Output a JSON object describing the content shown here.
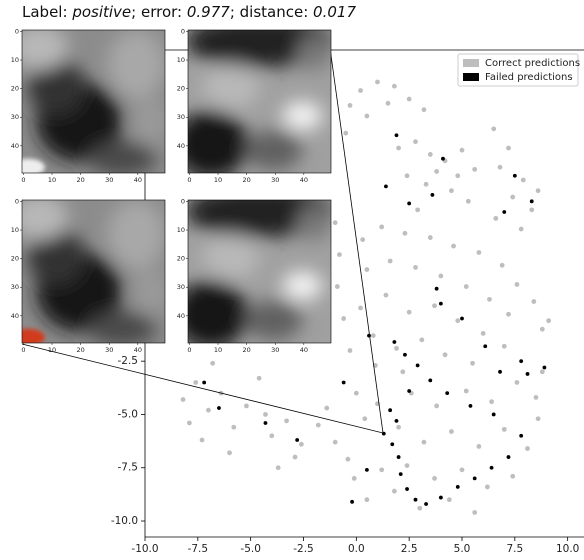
{
  "chart_data": {
    "type": "scatter",
    "title": {
      "label_caption": "Label:",
      "label": "positive",
      "error_caption": "; error:",
      "error": 0.977,
      "distance_caption": "; distance:",
      "distance": 0.017
    },
    "xlim": [
      -10.0,
      10.3
    ],
    "ylim": [
      -10.75,
      12.1
    ],
    "xticks": [
      {
        "value": -10,
        "label": "-10.0"
      },
      {
        "value": -7.5,
        "label": "-7.5"
      },
      {
        "value": -5,
        "label": "-5.0"
      },
      {
        "value": -2.5,
        "label": "-2.5"
      },
      {
        "value": 0,
        "label": "0.0"
      },
      {
        "value": 2.5,
        "label": "2.5"
      },
      {
        "value": 5,
        "label": "5.0"
      },
      {
        "value": 7.5,
        "label": "7.5"
      },
      {
        "value": 10,
        "label": "10.0"
      }
    ],
    "yticks": [
      {
        "value": -10,
        "label": "-10.0"
      },
      {
        "value": -7.5,
        "label": "-7.5"
      },
      {
        "value": -5,
        "label": "-5.0"
      },
      {
        "value": -2.5,
        "label": "-2.5"
      }
    ],
    "legend": "upper right",
    "series": [
      {
        "name": "Correct predictions",
        "color": "#bebebe",
        "x": [
          -0.3,
          0.2,
          1.0,
          1.8,
          2.5,
          3.2,
          0.5,
          -0.5,
          1.5,
          2.0,
          2.8,
          3.5,
          4.2,
          5.0,
          5.6,
          2.4,
          3.3,
          4.5,
          5.3,
          2.9,
          3.8,
          4.8,
          6.5,
          7.2,
          6.8,
          7.9,
          7.4,
          8.3,
          6.6,
          7.8,
          8.6,
          -1.0,
          -0.8,
          -0.9,
          -0.6,
          0.3,
          1.2,
          2.3,
          3.5,
          4.6,
          5.8,
          6.9,
          7.6,
          0.5,
          1.6,
          2.8,
          4.0,
          5.2,
          6.3,
          7.2,
          0.2,
          1.4,
          2.5,
          3.7,
          4.8,
          6.0,
          7.0,
          0.8,
          1.9,
          3.1,
          4.2,
          5.5,
          -0.3,
          0.9,
          2.2,
          8.4,
          8.8,
          9.1,
          -8.2,
          -7.6,
          -7.0,
          -6.4,
          -5.8,
          -7.3,
          -6.0,
          -5.2,
          -4.6,
          -4.3,
          -6.8,
          -7.9,
          -4.0,
          -3.3,
          -2.6,
          -1.8,
          -1.0,
          -2.9,
          -0.4,
          -3.7,
          -1.4,
          0.4,
          -0.1,
          0.0,
          1.0,
          2.6,
          3.8,
          5.2,
          6.4,
          7.6,
          8.5,
          2.0,
          3.2,
          4.5,
          5.8,
          7.0,
          8.1,
          2.4,
          3.7,
          5.0,
          6.2,
          7.4,
          1.8,
          3.0,
          4.4,
          5.6,
          0.5,
          1.2,
          8.8,
          8.6
        ],
        "y": [
          9.5,
          10.2,
          10.6,
          10.4,
          9.8,
          9.3,
          9.0,
          8.2,
          9.6,
          7.5,
          7.8,
          7.2,
          6.9,
          7.4,
          6.5,
          6.2,
          5.8,
          5.5,
          5.0,
          4.6,
          6.4,
          6.2,
          8.4,
          7.5,
          6.6,
          6.0,
          5.2,
          4.6,
          4.2,
          3.7,
          5.5,
          4.0,
          2.5,
          1.0,
          -0.5,
          3.2,
          3.8,
          3.5,
          3.3,
          2.9,
          2.6,
          2.0,
          1.1,
          1.8,
          2.2,
          1.9,
          1.5,
          1.0,
          0.4,
          -0.3,
          0.0,
          0.6,
          -0.2,
          0.1,
          -0.6,
          -1.2,
          -1.8,
          -1.3,
          -1.9,
          -1.5,
          -2.2,
          -2.6,
          -2.0,
          -2.7,
          -3.0,
          0.3,
          -1.0,
          -0.6,
          -4.3,
          -3.5,
          -4.8,
          -4.0,
          -5.6,
          -6.2,
          -6.8,
          -4.6,
          -3.3,
          -5.0,
          -2.6,
          -5.4,
          -6.0,
          -5.3,
          -6.4,
          -5.5,
          -6.3,
          -7.0,
          -7.1,
          -7.5,
          -4.7,
          -5.2,
          -8.0,
          -4.0,
          -4.5,
          -4.0,
          -4.6,
          -3.9,
          -4.4,
          -3.5,
          -4.2,
          -5.6,
          -6.3,
          -5.8,
          -6.5,
          -5.7,
          -6.6,
          -7.4,
          -8.0,
          -7.6,
          -8.4,
          -7.9,
          -8.6,
          -9.4,
          -9.0,
          -9.6,
          -9.0,
          -7.6,
          -3.0,
          -5.2
        ]
      },
      {
        "name": "Failed predictions",
        "color": "#000000",
        "x": [
          1.4,
          2.5,
          3.6,
          4.1,
          1.9,
          7.5,
          7.0,
          8.3,
          3.8,
          4.0,
          5.0,
          0.6,
          1.8,
          2.3,
          2.9,
          -0.6,
          6.1,
          7.8,
          8.1,
          8.9,
          6.8,
          -7.2,
          -6.5,
          -4.3,
          -2.8,
          1.3,
          1.7,
          2.0,
          2.1,
          2.4,
          2.8,
          3.3,
          4.0,
          4.8,
          5.6,
          6.4,
          7.2,
          7.8,
          6.5,
          5.4,
          4.3,
          3.5,
          2.5,
          0.5,
          -0.2,
          1.6,
          1.9
        ],
        "y": [
          5.7,
          4.9,
          5.3,
          7.0,
          8.1,
          6.2,
          4.5,
          5.0,
          0.9,
          0.2,
          -0.5,
          -1.3,
          -1.6,
          -2.2,
          -2.7,
          -3.5,
          -1.8,
          -2.5,
          -3.1,
          -2.8,
          -3.0,
          -3.5,
          -4.7,
          -5.4,
          -6.2,
          -5.9,
          -6.4,
          -7.0,
          -7.8,
          -8.5,
          -9.0,
          -9.2,
          -8.9,
          -8.4,
          -8.0,
          -7.5,
          -7.0,
          -6.0,
          -5.0,
          -4.6,
          -4.0,
          -3.4,
          -3.9,
          -7.6,
          -9.1,
          -4.8,
          -5.3
        ]
      }
    ],
    "insets": {
      "lim": [
        -0.5,
        49.5
      ],
      "ticks": [
        0,
        10,
        20,
        30,
        40
      ]
    }
  }
}
